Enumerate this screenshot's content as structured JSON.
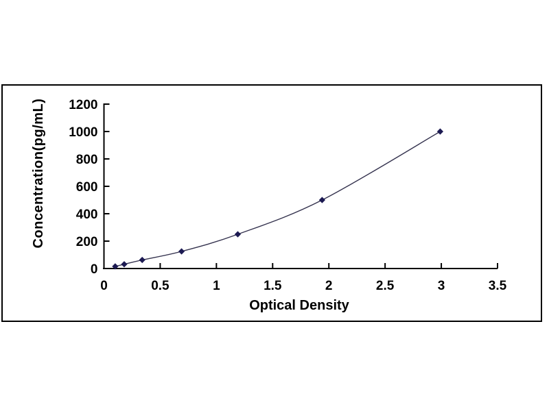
{
  "figure": {
    "background_color": "#ffffff",
    "frame_border_color": "#000000"
  },
  "chart_data": {
    "type": "line",
    "title": "",
    "xlabel": "Optical Density",
    "ylabel": "Concentration(pg/mL)",
    "x": [
      0.1,
      0.18,
      0.34,
      0.69,
      1.19,
      1.94,
      2.99
    ],
    "y": [
      15.6,
      31.2,
      62.5,
      125,
      250,
      500,
      1000
    ],
    "xlim": [
      0,
      3.5
    ],
    "ylim": [
      0,
      1200
    ],
    "xticks": [
      0,
      0.5,
      1,
      1.5,
      2,
      2.5,
      3,
      3.5
    ],
    "xtick_labels": [
      "0",
      "0.5",
      "1",
      "1.5",
      "2",
      "2.5",
      "3",
      "3.5"
    ],
    "yticks": [
      0,
      200,
      400,
      600,
      800,
      1000,
      1200
    ],
    "ytick_labels": [
      "0",
      "200",
      "400",
      "600",
      "800",
      "1000",
      "1200"
    ],
    "grid": false,
    "legend": "none",
    "marker": "diamond",
    "marker_color": "#1c1a52",
    "line_color": "#34324e",
    "axis_color": "#000000",
    "tick_label_color": "#000000"
  }
}
